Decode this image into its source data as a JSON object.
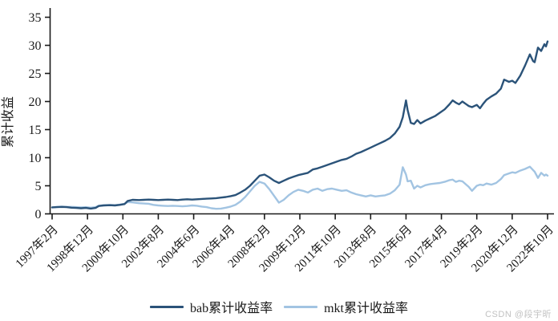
{
  "figure": {
    "watermark": "CSDN @段宇昕"
  },
  "chart_data": {
    "type": "line",
    "title": "",
    "xlabel": "",
    "ylabel": "累计收益",
    "ylim": [
      0,
      35
    ],
    "yticks": [
      0,
      5,
      10,
      15,
      20,
      25,
      30,
      35
    ],
    "grid": false,
    "legend_position": "bottom",
    "axis_color": "#1a1a1a",
    "x_axis": {
      "unit": "months_since_1997-02",
      "range": [
        0,
        308
      ],
      "tick_interval_months": 22,
      "tick_labels": [
        "1997年2月",
        "1998年12月",
        "2000年10月",
        "2002年8月",
        "2004年6月",
        "2006年4月",
        "2008年2月",
        "2009年12月",
        "2011年10月",
        "2013年8月",
        "2015年6月",
        "2017年4月",
        "2019年2月",
        "2020年12月",
        "2022年10月"
      ]
    },
    "series": [
      {
        "name": "bab累计收益率",
        "color": "#2b5379",
        "points": [
          [
            0,
            1.15
          ],
          [
            3,
            1.2
          ],
          [
            6,
            1.25
          ],
          [
            9,
            1.2
          ],
          [
            12,
            1.1
          ],
          [
            15,
            1.05
          ],
          [
            18,
            1.0
          ],
          [
            21,
            1.05
          ],
          [
            24,
            0.95
          ],
          [
            27,
            1.05
          ],
          [
            29,
            1.4
          ],
          [
            32,
            1.5
          ],
          [
            36,
            1.55
          ],
          [
            39,
            1.5
          ],
          [
            42,
            1.6
          ],
          [
            45,
            1.75
          ],
          [
            47,
            2.3
          ],
          [
            50,
            2.5
          ],
          [
            54,
            2.45
          ],
          [
            57,
            2.5
          ],
          [
            60,
            2.55
          ],
          [
            63,
            2.5
          ],
          [
            66,
            2.45
          ],
          [
            69,
            2.5
          ],
          [
            72,
            2.55
          ],
          [
            75,
            2.5
          ],
          [
            78,
            2.45
          ],
          [
            81,
            2.55
          ],
          [
            84,
            2.6
          ],
          [
            87,
            2.55
          ],
          [
            90,
            2.6
          ],
          [
            93,
            2.65
          ],
          [
            96,
            2.7
          ],
          [
            99,
            2.75
          ],
          [
            102,
            2.8
          ],
          [
            105,
            2.9
          ],
          [
            108,
            3.0
          ],
          [
            111,
            3.15
          ],
          [
            114,
            3.35
          ],
          [
            117,
            3.8
          ],
          [
            120,
            4.3
          ],
          [
            123,
            5.0
          ],
          [
            126,
            5.9
          ],
          [
            129,
            6.8
          ],
          [
            132,
            7.0
          ],
          [
            135,
            6.5
          ],
          [
            138,
            5.9
          ],
          [
            141,
            5.5
          ],
          [
            144,
            5.9
          ],
          [
            147,
            6.3
          ],
          [
            150,
            6.6
          ],
          [
            153,
            6.9
          ],
          [
            156,
            7.1
          ],
          [
            159,
            7.3
          ],
          [
            162,
            7.9
          ],
          [
            165,
            8.1
          ],
          [
            168,
            8.4
          ],
          [
            171,
            8.7
          ],
          [
            174,
            9.0
          ],
          [
            177,
            9.3
          ],
          [
            180,
            9.6
          ],
          [
            183,
            9.8
          ],
          [
            186,
            10.2
          ],
          [
            189,
            10.7
          ],
          [
            192,
            11.0
          ],
          [
            195,
            11.4
          ],
          [
            198,
            11.8
          ],
          [
            201,
            12.2
          ],
          [
            204,
            12.6
          ],
          [
            207,
            13.0
          ],
          [
            210,
            13.5
          ],
          [
            213,
            14.3
          ],
          [
            216,
            15.5
          ],
          [
            218,
            17.2
          ],
          [
            220,
            20.2
          ],
          [
            221,
            18.5
          ],
          [
            223,
            16.2
          ],
          [
            225,
            16.0
          ],
          [
            227,
            16.7
          ],
          [
            229,
            16.1
          ],
          [
            232,
            16.6
          ],
          [
            235,
            17.0
          ],
          [
            238,
            17.4
          ],
          [
            241,
            18.0
          ],
          [
            244,
            18.6
          ],
          [
            247,
            19.5
          ],
          [
            249,
            20.2
          ],
          [
            251,
            19.8
          ],
          [
            253,
            19.5
          ],
          [
            255,
            20.0
          ],
          [
            257,
            19.6
          ],
          [
            259,
            19.2
          ],
          [
            261,
            19.0
          ],
          [
            264,
            19.4
          ],
          [
            266,
            18.8
          ],
          [
            268,
            19.6
          ],
          [
            270,
            20.3
          ],
          [
            273,
            20.9
          ],
          [
            276,
            21.4
          ],
          [
            279,
            22.3
          ],
          [
            281,
            23.9
          ],
          [
            284,
            23.5
          ],
          [
            286,
            23.7
          ],
          [
            288,
            23.3
          ],
          [
            291,
            24.6
          ],
          [
            294,
            26.4
          ],
          [
            297,
            28.4
          ],
          [
            299,
            27.2
          ],
          [
            300,
            27.0
          ],
          [
            302,
            29.6
          ],
          [
            304,
            29.0
          ],
          [
            306,
            30.2
          ],
          [
            307,
            29.8
          ],
          [
            308,
            30.7
          ]
        ]
      },
      {
        "name": "mkt累计收益率",
        "color": "#a2c4e2",
        "points": [
          [
            0,
            1.15
          ],
          [
            3,
            1.25
          ],
          [
            6,
            1.3
          ],
          [
            9,
            1.25
          ],
          [
            12,
            1.25
          ],
          [
            15,
            1.2
          ],
          [
            18,
            1.15
          ],
          [
            21,
            1.2
          ],
          [
            24,
            1.1
          ],
          [
            27,
            1.2
          ],
          [
            29,
            1.45
          ],
          [
            32,
            1.55
          ],
          [
            36,
            1.6
          ],
          [
            39,
            1.55
          ],
          [
            42,
            1.65
          ],
          [
            45,
            1.8
          ],
          [
            47,
            2.1
          ],
          [
            50,
            2.05
          ],
          [
            54,
            1.9
          ],
          [
            57,
            1.85
          ],
          [
            60,
            1.8
          ],
          [
            63,
            1.6
          ],
          [
            66,
            1.5
          ],
          [
            69,
            1.45
          ],
          [
            72,
            1.4
          ],
          [
            75,
            1.45
          ],
          [
            78,
            1.4
          ],
          [
            81,
            1.35
          ],
          [
            84,
            1.4
          ],
          [
            87,
            1.5
          ],
          [
            90,
            1.45
          ],
          [
            93,
            1.3
          ],
          [
            96,
            1.2
          ],
          [
            99,
            1.0
          ],
          [
            102,
            0.9
          ],
          [
            105,
            0.95
          ],
          [
            108,
            1.1
          ],
          [
            111,
            1.3
          ],
          [
            114,
            1.6
          ],
          [
            117,
            2.2
          ],
          [
            120,
            3.0
          ],
          [
            123,
            4.0
          ],
          [
            126,
            5.0
          ],
          [
            129,
            5.7
          ],
          [
            132,
            5.4
          ],
          [
            135,
            4.4
          ],
          [
            138,
            3.2
          ],
          [
            141,
            2.0
          ],
          [
            144,
            2.5
          ],
          [
            147,
            3.3
          ],
          [
            150,
            3.9
          ],
          [
            153,
            4.3
          ],
          [
            156,
            4.1
          ],
          [
            159,
            3.8
          ],
          [
            162,
            4.3
          ],
          [
            165,
            4.5
          ],
          [
            168,
            4.1
          ],
          [
            171,
            4.4
          ],
          [
            174,
            4.5
          ],
          [
            177,
            4.3
          ],
          [
            180,
            4.1
          ],
          [
            183,
            4.2
          ],
          [
            186,
            3.8
          ],
          [
            189,
            3.5
          ],
          [
            192,
            3.3
          ],
          [
            195,
            3.1
          ],
          [
            198,
            3.3
          ],
          [
            201,
            3.1
          ],
          [
            204,
            3.2
          ],
          [
            207,
            3.3
          ],
          [
            210,
            3.6
          ],
          [
            213,
            4.2
          ],
          [
            216,
            5.2
          ],
          [
            218,
            8.3
          ],
          [
            220,
            7.0
          ],
          [
            221,
            5.8
          ],
          [
            223,
            5.9
          ],
          [
            225,
            4.5
          ],
          [
            227,
            5.0
          ],
          [
            229,
            4.7
          ],
          [
            232,
            5.1
          ],
          [
            235,
            5.3
          ],
          [
            238,
            5.4
          ],
          [
            241,
            5.5
          ],
          [
            244,
            5.7
          ],
          [
            247,
            6.0
          ],
          [
            249,
            6.1
          ],
          [
            251,
            5.7
          ],
          [
            253,
            5.9
          ],
          [
            255,
            5.8
          ],
          [
            257,
            5.3
          ],
          [
            259,
            4.8
          ],
          [
            261,
            4.1
          ],
          [
            264,
            5.0
          ],
          [
            266,
            5.2
          ],
          [
            268,
            5.1
          ],
          [
            270,
            5.4
          ],
          [
            273,
            5.2
          ],
          [
            276,
            5.5
          ],
          [
            279,
            6.2
          ],
          [
            281,
            6.9
          ],
          [
            284,
            7.2
          ],
          [
            286,
            7.4
          ],
          [
            288,
            7.3
          ],
          [
            291,
            7.7
          ],
          [
            294,
            8.0
          ],
          [
            297,
            8.4
          ],
          [
            299,
            7.8
          ],
          [
            300,
            7.5
          ],
          [
            302,
            6.4
          ],
          [
            304,
            7.3
          ],
          [
            306,
            6.8
          ],
          [
            307,
            7.0
          ],
          [
            308,
            6.8
          ]
        ]
      }
    ]
  }
}
